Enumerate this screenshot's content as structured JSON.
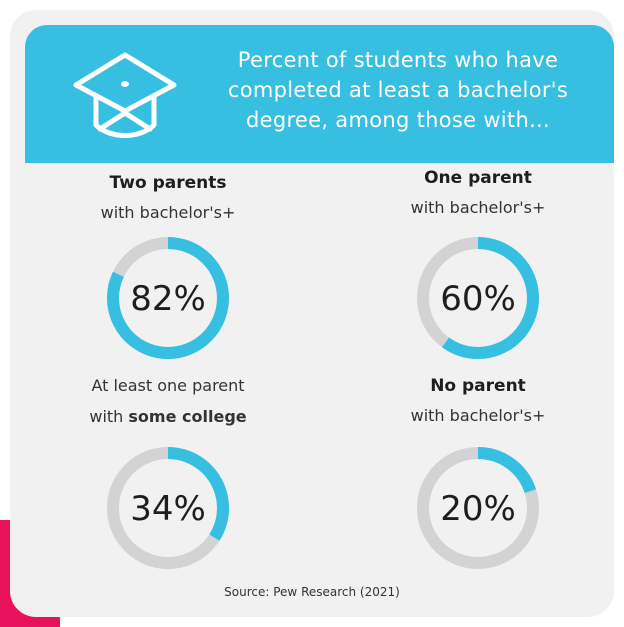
{
  "header": {
    "title_lines": [
      "Percent of students who have",
      "completed at least a bachelor's",
      "degree, among those with..."
    ],
    "icon": "graduation-cap-icon"
  },
  "chart_data": {
    "type": "pie",
    "style": "donut",
    "items": [
      {
        "line1_bold": "Two parents",
        "line1": "",
        "line2_pre": "with bachelor's+",
        "line2_bold": "",
        "value": 82,
        "label": "82%"
      },
      {
        "line1_bold": "One parent",
        "line1": "",
        "line2_pre": "with bachelor's+",
        "line2_bold": "",
        "value": 60,
        "label": "60%"
      },
      {
        "line1_bold": "",
        "line1": "At least one parent",
        "line2_pre": "with ",
        "line2_bold": "some college",
        "value": 34,
        "label": "34%"
      },
      {
        "line1_bold": "No parent",
        "line1": "",
        "line2_pre": "with bachelor's+",
        "line2_bold": "",
        "value": 20,
        "label": "20%"
      }
    ]
  },
  "colors": {
    "header": "#36bfe0",
    "ring_fill": "#36bfe0",
    "ring_track": "#d3d3d6",
    "card": "#f1f1f1",
    "accent": "#e8125c"
  },
  "source": "Source: Pew Research (2021)"
}
